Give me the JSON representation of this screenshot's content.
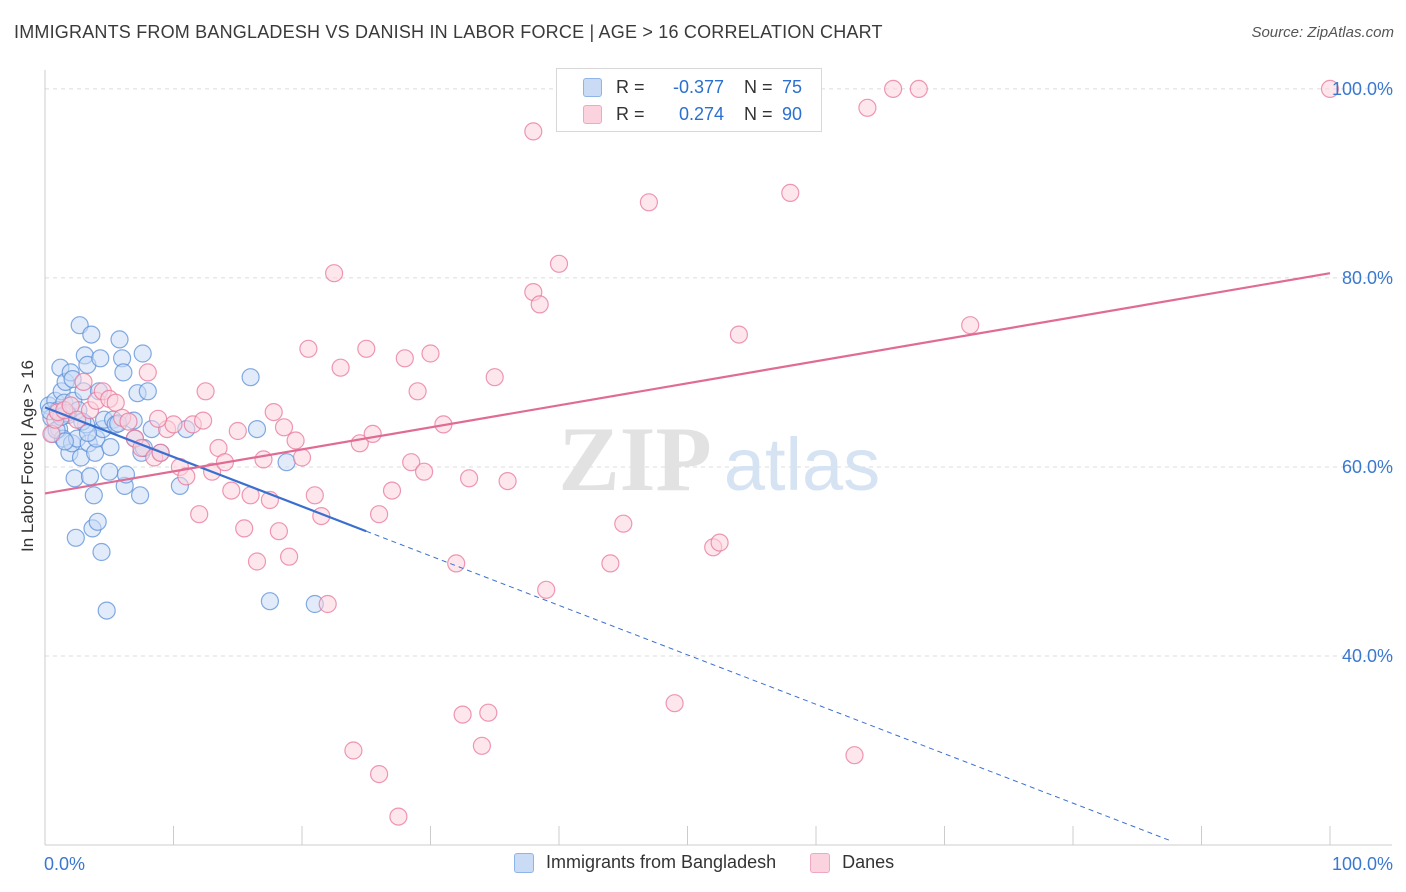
{
  "title": "IMMIGRANTS FROM BANGLADESH VS DANISH IN LABOR FORCE | AGE > 16 CORRELATION CHART",
  "source": "Source: ZipAtlas.com",
  "watermark": {
    "zip": "ZIP",
    "atlas": "atlas"
  },
  "stats": [
    {
      "r_label": "R =",
      "r_value": "-0.377",
      "n_label": "N =",
      "n_value": "75",
      "color": "#8fb5e8",
      "fill": "#c9dbf5"
    },
    {
      "r_label": "R =",
      "r_value": "0.274",
      "n_label": "N =",
      "n_value": "90",
      "color": "#f0a8c0",
      "fill": "#fbd3df"
    }
  ],
  "legend": [
    {
      "label": "Immigrants from Bangladesh",
      "color": "#8fb5e8",
      "fill": "#c9dbf5"
    },
    {
      "label": "Danes",
      "color": "#f0a8c0",
      "fill": "#fbd3df"
    }
  ],
  "chart_data": {
    "type": "scatter",
    "title": "IMMIGRANTS FROM BANGLADESH VS DANISH IN LABOR FORCE | AGE > 16 CORRELATION CHART",
    "xlabel": "",
    "ylabel": "In Labor Force | Age > 16",
    "xlim": [
      0,
      100
    ],
    "ylim": [
      20,
      102
    ],
    "x_tick_labels": [
      {
        "value": 0,
        "label": "0.0%"
      },
      {
        "value": 100,
        "label": "100.0%"
      }
    ],
    "y_tick_labels": [
      {
        "value": 100,
        "label": "100.0%"
      },
      {
        "value": 80,
        "label": "80.0%"
      },
      {
        "value": 60,
        "label": "60.0%"
      },
      {
        "value": 40,
        "label": "40.0%"
      }
    ],
    "x_minor_ticks": [
      10,
      20,
      30,
      40,
      50,
      60,
      70,
      80,
      90,
      100
    ],
    "grid": true,
    "series": [
      {
        "name": "Immigrants from Bangladesh",
        "color": "#5b8fd8",
        "fill": "#c9dbf5",
        "trend": {
          "x0": 0,
          "y0": 66.3,
          "x1": 25.0,
          "y1": 53.2,
          "dashed_to_x": 87.5,
          "dashed_to_y": 20.5,
          "color": "#3a6fd0"
        },
        "points": [
          [
            0.3,
            66.5
          ],
          [
            0.5,
            65.2
          ],
          [
            0.6,
            63.5
          ],
          [
            0.8,
            67.0
          ],
          [
            1.0,
            66.0
          ],
          [
            1.1,
            64.0
          ],
          [
            1.2,
            70.5
          ],
          [
            1.3,
            68.0
          ],
          [
            1.4,
            63.0
          ],
          [
            1.5,
            66.8
          ],
          [
            1.6,
            69.0
          ],
          [
            1.8,
            65.5
          ],
          [
            1.9,
            61.5
          ],
          [
            2.0,
            70.0
          ],
          [
            2.1,
            62.5
          ],
          [
            2.2,
            67.0
          ],
          [
            2.3,
            58.8
          ],
          [
            2.4,
            52.5
          ],
          [
            2.5,
            63.0
          ],
          [
            2.6,
            66.0
          ],
          [
            2.7,
            75.0
          ],
          [
            2.8,
            61.0
          ],
          [
            3.0,
            68.0
          ],
          [
            3.1,
            71.8
          ],
          [
            3.2,
            64.5
          ],
          [
            3.3,
            70.8
          ],
          [
            3.4,
            62.5
          ],
          [
            3.5,
            59.0
          ],
          [
            3.6,
            74.0
          ],
          [
            3.7,
            53.5
          ],
          [
            3.8,
            57.0
          ],
          [
            3.9,
            61.5
          ],
          [
            4.0,
            63.0
          ],
          [
            4.1,
            54.2
          ],
          [
            4.2,
            68.0
          ],
          [
            4.3,
            71.5
          ],
          [
            4.4,
            51.0
          ],
          [
            4.5,
            64.0
          ],
          [
            4.6,
            65.0
          ],
          [
            4.8,
            44.8
          ],
          [
            5.0,
            59.5
          ],
          [
            5.3,
            65.0
          ],
          [
            5.5,
            64.5
          ],
          [
            5.8,
            73.5
          ],
          [
            6.0,
            71.5
          ],
          [
            6.1,
            70.0
          ],
          [
            6.2,
            58.0
          ],
          [
            6.3,
            59.2
          ],
          [
            7.0,
            63.0
          ],
          [
            7.2,
            67.8
          ],
          [
            7.4,
            57.0
          ],
          [
            7.5,
            61.5
          ],
          [
            7.6,
            72.0
          ],
          [
            7.7,
            62.0
          ],
          [
            8.0,
            68.0
          ],
          [
            8.3,
            64.0
          ],
          [
            9.0,
            61.5
          ],
          [
            10.5,
            58.0
          ],
          [
            11.0,
            64.0
          ],
          [
            16.0,
            69.5
          ],
          [
            16.5,
            64.0
          ],
          [
            17.5,
            45.8
          ],
          [
            18.8,
            60.5
          ],
          [
            21.0,
            45.5
          ],
          [
            0.4,
            65.9
          ],
          [
            1.7,
            65.7
          ],
          [
            2.9,
            64.8
          ],
          [
            0.9,
            63.9
          ],
          [
            1.25,
            65.3
          ],
          [
            6.9,
            64.9
          ],
          [
            5.7,
            64.6
          ],
          [
            3.35,
            63.6
          ],
          [
            2.15,
            69.3
          ],
          [
            5.1,
            62.1
          ],
          [
            1.55,
            62.7
          ]
        ]
      },
      {
        "name": "Danes",
        "color": "#e8759a",
        "fill": "#fbd3df",
        "trend": {
          "x0": 0,
          "y0": 57.2,
          "x1": 100,
          "y1": 80.5,
          "color": "#e06b94"
        },
        "points": [
          [
            0.5,
            63.5
          ],
          [
            0.8,
            65.0
          ],
          [
            1.0,
            65.8
          ],
          [
            1.5,
            66.0
          ],
          [
            2.0,
            66.5
          ],
          [
            2.5,
            65.0
          ],
          [
            3.0,
            69.0
          ],
          [
            3.5,
            66.0
          ],
          [
            4.0,
            67.0
          ],
          [
            4.5,
            68.0
          ],
          [
            5.0,
            67.2
          ],
          [
            5.5,
            66.8
          ],
          [
            6.0,
            65.2
          ],
          [
            6.5,
            64.8
          ],
          [
            7.0,
            63.0
          ],
          [
            7.5,
            62.0
          ],
          [
            8.0,
            70.0
          ],
          [
            8.5,
            61.0
          ],
          [
            9.0,
            61.5
          ],
          [
            9.5,
            64.0
          ],
          [
            10.0,
            64.5
          ],
          [
            10.5,
            60.0
          ],
          [
            11.0,
            59.0
          ],
          [
            11.5,
            64.5
          ],
          [
            12.0,
            55.0
          ],
          [
            12.5,
            68.0
          ],
          [
            13.0,
            59.5
          ],
          [
            13.5,
            62.0
          ],
          [
            14.0,
            60.5
          ],
          [
            14.5,
            57.5
          ],
          [
            15.0,
            63.8
          ],
          [
            15.5,
            53.5
          ],
          [
            16.0,
            57.0
          ],
          [
            16.5,
            50.0
          ],
          [
            17.0,
            60.8
          ],
          [
            17.5,
            56.5
          ],
          [
            17.8,
            65.8
          ],
          [
            18.2,
            53.2
          ],
          [
            18.6,
            64.2
          ],
          [
            19.0,
            50.5
          ],
          [
            19.5,
            62.8
          ],
          [
            20.0,
            61.0
          ],
          [
            20.5,
            72.5
          ],
          [
            21.0,
            57.0
          ],
          [
            21.5,
            54.8
          ],
          [
            22.0,
            45.5
          ],
          [
            22.5,
            80.5
          ],
          [
            23.0,
            70.5
          ],
          [
            24.0,
            30.0
          ],
          [
            24.5,
            62.5
          ],
          [
            25.0,
            72.5
          ],
          [
            25.5,
            63.5
          ],
          [
            26.0,
            55.0
          ],
          [
            27.0,
            57.5
          ],
          [
            27.5,
            23.0
          ],
          [
            28.0,
            71.5
          ],
          [
            28.5,
            60.5
          ],
          [
            29.0,
            68.0
          ],
          [
            29.5,
            59.5
          ],
          [
            30.0,
            72.0
          ],
          [
            31.0,
            64.5
          ],
          [
            32.0,
            49.8
          ],
          [
            32.5,
            33.8
          ],
          [
            33.0,
            58.8
          ],
          [
            34.0,
            30.5
          ],
          [
            34.5,
            34.0
          ],
          [
            35.0,
            69.5
          ],
          [
            36.0,
            58.5
          ],
          [
            38.0,
            78.5
          ],
          [
            38.5,
            77.2
          ],
          [
            39.0,
            47.0
          ],
          [
            40.0,
            81.5
          ],
          [
            44.0,
            49.8
          ],
          [
            45.0,
            54.0
          ],
          [
            47.0,
            88.0
          ],
          [
            49.0,
            35.0
          ],
          [
            52.0,
            51.5
          ],
          [
            52.5,
            52.0
          ],
          [
            54.0,
            74.0
          ],
          [
            58.0,
            89.0
          ],
          [
            63.0,
            29.5
          ],
          [
            64.0,
            98.0
          ],
          [
            66.0,
            100.0
          ],
          [
            68.0,
            100.0
          ],
          [
            72.0,
            75.0
          ],
          [
            100.0,
            100.0
          ],
          [
            38.0,
            95.5
          ],
          [
            26.0,
            27.5
          ],
          [
            8.8,
            65.1
          ],
          [
            12.3,
            64.9
          ]
        ]
      }
    ]
  }
}
